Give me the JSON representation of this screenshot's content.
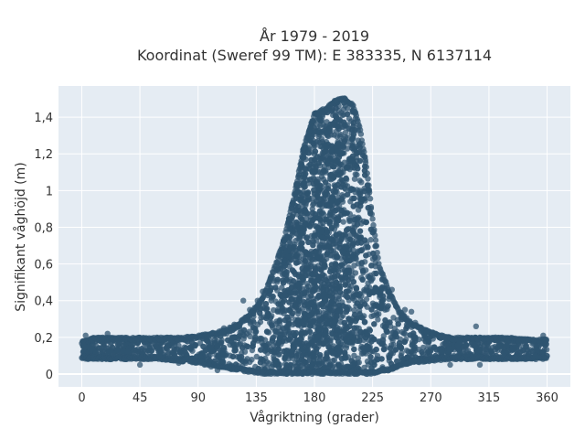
{
  "title_line1": "År 1979 - 2019",
  "title_line2": "Koordinat (Sweref 99 TM): E 383335, N 6137114",
  "chart_data": {
    "type": "scatter",
    "xlabel": "Vågriktning (grader)",
    "ylabel": "Signifikant våghöjd (m)",
    "xlim": [
      -18,
      378
    ],
    "ylim": [
      -0.07,
      1.57
    ],
    "xticks": [
      0,
      45,
      90,
      135,
      180,
      225,
      270,
      315,
      360
    ],
    "xtick_labels": [
      "0",
      "45",
      "90",
      "135",
      "180",
      "225",
      "270",
      "315",
      "360"
    ],
    "yticks": [
      0,
      0.2,
      0.4,
      0.6,
      0.8,
      1.0,
      1.2,
      1.4
    ],
    "ytick_labels": [
      "0",
      "0,2",
      "0,4",
      "0,6",
      "0,8",
      "1",
      "1,2",
      "1,4"
    ],
    "grid": true,
    "marker_color": "#2f5470",
    "background_color": "#e5ecf3",
    "envelope": {
      "direction": [
        0,
        10,
        20,
        30,
        45,
        60,
        75,
        90,
        105,
        120,
        130,
        140,
        150,
        157,
        165,
        172,
        180,
        188,
        195,
        203,
        210,
        215,
        220,
        225,
        230,
        238,
        245,
        255,
        270,
        285,
        300,
        315,
        330,
        345,
        360
      ],
      "max_height": [
        0.18,
        0.2,
        0.2,
        0.2,
        0.2,
        0.2,
        0.2,
        0.21,
        0.23,
        0.27,
        0.33,
        0.42,
        0.6,
        0.75,
        1.0,
        1.25,
        1.42,
        1.45,
        1.49,
        1.51,
        1.47,
        1.35,
        1.15,
        0.85,
        0.6,
        0.45,
        0.35,
        0.28,
        0.23,
        0.2,
        0.2,
        0.2,
        0.2,
        0.19,
        0.19
      ],
      "min_height": [
        0.08,
        0.08,
        0.08,
        0.08,
        0.08,
        0.08,
        0.07,
        0.06,
        0.04,
        0.02,
        0.01,
        0.0,
        0.0,
        0.0,
        0.0,
        0.0,
        0.0,
        0.0,
        0.0,
        0.0,
        0.0,
        0.0,
        0.0,
        0.0,
        0.01,
        0.02,
        0.04,
        0.06,
        0.07,
        0.08,
        0.08,
        0.08,
        0.08,
        0.08,
        0.08
      ]
    },
    "outliers": [
      [
        3,
        0.21
      ],
      [
        20,
        0.22
      ],
      [
        28,
        0.09
      ],
      [
        45,
        0.05
      ],
      [
        60,
        0.1
      ],
      [
        75,
        0.06
      ],
      [
        95,
        0.05
      ],
      [
        100,
        0.04
      ],
      [
        105,
        0.02
      ],
      [
        108,
        0.17
      ],
      [
        110,
        0.25
      ],
      [
        118,
        0.27
      ],
      [
        122,
        0.26
      ],
      [
        125,
        0.4
      ],
      [
        130,
        0.35
      ],
      [
        136,
        0.4
      ],
      [
        140,
        0.45
      ],
      [
        145,
        0.5
      ],
      [
        148,
        0.52
      ],
      [
        225,
        0.52
      ],
      [
        232,
        0.47
      ],
      [
        240,
        0.46
      ],
      [
        243,
        0.37
      ],
      [
        248,
        0.32
      ],
      [
        250,
        0.35
      ],
      [
        255,
        0.34
      ],
      [
        258,
        0.28
      ],
      [
        262,
        0.24
      ],
      [
        272,
        0.22
      ],
      [
        278,
        0.2
      ],
      [
        285,
        0.05
      ],
      [
        288,
        0.1
      ],
      [
        292,
        0.18
      ],
      [
        298,
        0.2
      ],
      [
        305,
        0.26
      ],
      [
        308,
        0.05
      ],
      [
        310,
        0.18
      ],
      [
        320,
        0.2
      ],
      [
        335,
        0.09
      ],
      [
        345,
        0.19
      ],
      [
        357,
        0.21
      ],
      [
        359,
        0.17
      ],
      [
        351,
        0.1
      ]
    ]
  }
}
